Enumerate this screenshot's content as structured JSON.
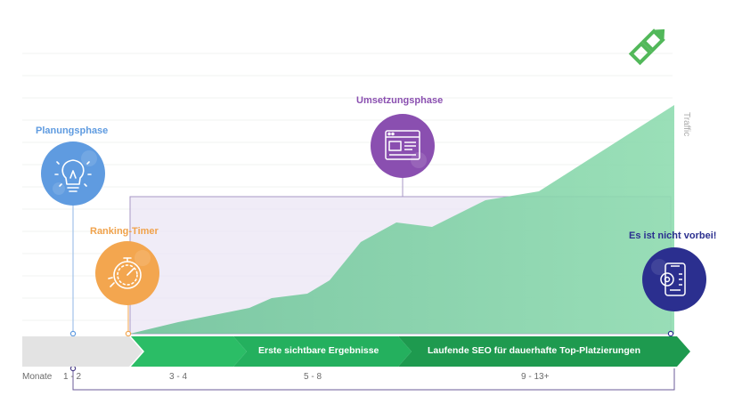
{
  "phases": {
    "planning": "Planungsphase",
    "ranking_timer": "Ranking-Timer",
    "implementation": "Umsetzungsphase",
    "not_over": "Es ist nicht vorbei!"
  },
  "axis": {
    "y_label": "Traffic",
    "months_label": "Monate"
  },
  "arrows": {
    "segment_1": "Erste sichtbare Ergebnisse",
    "segment_2": "Laufende SEO für dauerhafte Top-Platzierungen"
  },
  "months": [
    "1 - 2",
    "3 - 4",
    "5 - 8",
    "9 - 13+"
  ],
  "icons": {
    "planning": "lightbulb-icon",
    "ranking_timer": "stopwatch-icon",
    "implementation": "browser-window-icon",
    "not_over": "phone-settings-icon",
    "logo": "arrow-logo-icon"
  },
  "colors": {
    "planning": "#5f9be0",
    "ranking_timer": "#f3a64f",
    "implementation": "#8a4fb0",
    "not_over": "#2b2f8f",
    "traffic_fill": "#7fd4a4",
    "arrow_green": "#22b35e",
    "arrow_dark_green": "#1e9a4f",
    "phase_box": "#9a8ab8"
  }
}
